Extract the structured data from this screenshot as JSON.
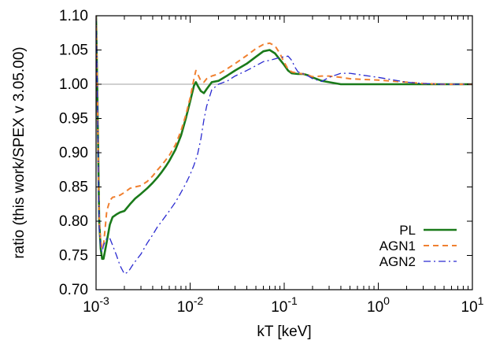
{
  "chart_data": {
    "type": "line",
    "title": "",
    "xlabel": "kT [keV]",
    "ylabel": "ratio (this work/SPEX v 3.05.00)",
    "xscale": "log",
    "xlim": [
      0.001,
      10
    ],
    "ylim": [
      0.7,
      1.1
    ],
    "grid": false,
    "legend_position": "bottom-right",
    "x_ticks": [
      {
        "base": "10",
        "exp": "-3"
      },
      {
        "base": "10",
        "exp": "-2"
      },
      {
        "base": "10",
        "exp": "-1"
      },
      {
        "base": "10",
        "exp": "0"
      },
      {
        "base": "10",
        "exp": "1"
      }
    ],
    "y_ticks": [
      "0.70",
      "0.75",
      "0.80",
      "0.85",
      "0.90",
      "0.95",
      "1.00",
      "1.05",
      "1.10"
    ],
    "reference_line": {
      "y": 1.0,
      "color": "#a0a0a0"
    },
    "series": [
      {
        "name": "PL",
        "color": "#1a7a1a",
        "dash": "solid",
        "x": [
          0.001,
          0.00103,
          0.00106,
          0.00108,
          0.00112,
          0.00116,
          0.0012,
          0.0013,
          0.0014,
          0.0015,
          0.00165,
          0.0018,
          0.002,
          0.0023,
          0.0026,
          0.003,
          0.0035,
          0.004,
          0.0045,
          0.005,
          0.0055,
          0.006,
          0.007,
          0.008,
          0.009,
          0.01,
          0.011,
          0.0115,
          0.012,
          0.013,
          0.014,
          0.015,
          0.017,
          0.02,
          0.025,
          0.03,
          0.04,
          0.05,
          0.06,
          0.07,
          0.08,
          0.09,
          0.1,
          0.11,
          0.12,
          0.14,
          0.16,
          0.18,
          0.2,
          0.25,
          0.3,
          0.4,
          0.5,
          0.7,
          1.0,
          2.0,
          3.0,
          5.0,
          10.0
        ],
        "y": [
          1.1,
          1.0,
          0.88,
          0.8,
          0.76,
          0.745,
          0.745,
          0.77,
          0.795,
          0.806,
          0.81,
          0.813,
          0.815,
          0.825,
          0.833,
          0.84,
          0.848,
          0.856,
          0.864,
          0.872,
          0.88,
          0.888,
          0.905,
          0.925,
          0.95,
          0.975,
          0.998,
          1.003,
          0.998,
          0.99,
          0.987,
          0.993,
          1.003,
          1.005,
          1.013,
          1.02,
          1.03,
          1.04,
          1.048,
          1.05,
          1.045,
          1.036,
          1.028,
          1.02,
          1.016,
          1.015,
          1.015,
          1.013,
          1.01,
          1.005,
          1.003,
          1.0,
          1.0,
          1.0,
          1.0,
          1.0,
          1.0,
          1.0,
          1.0
        ]
      },
      {
        "name": "AGN1",
        "color": "#f08030",
        "dash": "dashed",
        "x": [
          0.001,
          0.00103,
          0.00106,
          0.00108,
          0.00112,
          0.00116,
          0.0012,
          0.00125,
          0.0013,
          0.0014,
          0.0015,
          0.00165,
          0.0018,
          0.002,
          0.0023,
          0.0026,
          0.003,
          0.0035,
          0.004,
          0.0045,
          0.005,
          0.006,
          0.007,
          0.008,
          0.009,
          0.01,
          0.011,
          0.0115,
          0.012,
          0.013,
          0.014,
          0.015,
          0.017,
          0.02,
          0.025,
          0.03,
          0.04,
          0.05,
          0.06,
          0.07,
          0.08,
          0.09,
          0.1,
          0.11,
          0.12,
          0.14,
          0.16,
          0.18,
          0.2,
          0.25,
          0.3,
          0.4,
          0.5,
          0.7,
          1.0,
          2.0,
          3.0,
          5.0,
          10.0
        ],
        "y": [
          1.1,
          1.0,
          0.88,
          0.8,
          0.77,
          0.76,
          0.765,
          0.79,
          0.815,
          0.83,
          0.835,
          0.836,
          0.838,
          0.842,
          0.848,
          0.85,
          0.852,
          0.858,
          0.866,
          0.875,
          0.882,
          0.896,
          0.912,
          0.932,
          0.955,
          0.98,
          1.008,
          1.02,
          1.015,
          1.005,
          1.003,
          1.008,
          1.012,
          1.015,
          1.023,
          1.03,
          1.042,
          1.052,
          1.058,
          1.06,
          1.056,
          1.045,
          1.032,
          1.022,
          1.018,
          1.016,
          1.015,
          1.013,
          1.011,
          1.012,
          1.012,
          1.01,
          1.008,
          1.007,
          1.006,
          1.003,
          1.001,
          1.0,
          1.0
        ]
      },
      {
        "name": "AGN2",
        "color": "#2a2ad0",
        "dash": "dashdot",
        "x": [
          0.001,
          0.00103,
          0.00106,
          0.00108,
          0.00112,
          0.00116,
          0.0012,
          0.0013,
          0.0014,
          0.0015,
          0.00165,
          0.0018,
          0.002,
          0.0022,
          0.0025,
          0.003,
          0.0035,
          0.004,
          0.0045,
          0.005,
          0.006,
          0.007,
          0.008,
          0.009,
          0.01,
          0.011,
          0.012,
          0.013,
          0.014,
          0.015,
          0.017,
          0.02,
          0.025,
          0.03,
          0.04,
          0.05,
          0.06,
          0.07,
          0.08,
          0.09,
          0.1,
          0.11,
          0.12,
          0.13,
          0.14,
          0.16,
          0.18,
          0.2,
          0.25,
          0.3,
          0.4,
          0.5,
          0.7,
          1.0,
          2.0,
          3.0,
          5.0,
          10.0
        ],
        "y": [
          1.1,
          1.0,
          0.87,
          0.79,
          0.76,
          0.755,
          0.765,
          0.775,
          0.775,
          0.765,
          0.75,
          0.735,
          0.723,
          0.726,
          0.738,
          0.752,
          0.768,
          0.78,
          0.792,
          0.8,
          0.815,
          0.828,
          0.842,
          0.855,
          0.868,
          0.882,
          0.898,
          0.92,
          0.948,
          0.968,
          0.992,
          1.0,
          1.005,
          1.012,
          1.02,
          1.027,
          1.033,
          1.035,
          1.037,
          1.039,
          1.04,
          1.041,
          1.035,
          1.025,
          1.018,
          1.015,
          1.012,
          1.008,
          1.004,
          1.01,
          1.016,
          1.016,
          1.013,
          1.01,
          1.003,
          1.001,
          1.0,
          1.0
        ]
      }
    ]
  }
}
